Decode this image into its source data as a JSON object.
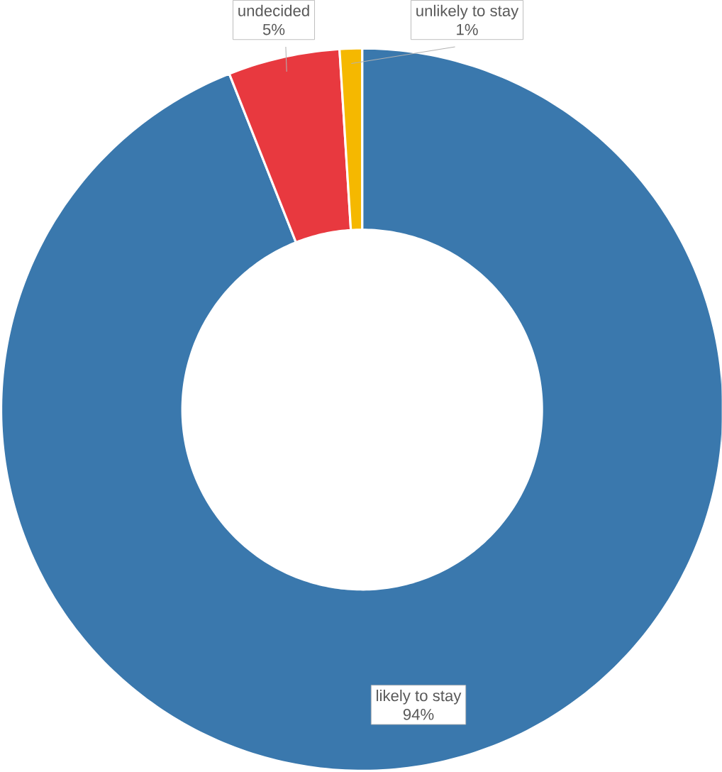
{
  "chart_data": {
    "type": "donut",
    "categories": [
      "likely to stay",
      "undecided",
      "unlikely to stay"
    ],
    "values": [
      94,
      5,
      1
    ],
    "colors": [
      "#3a78ad",
      "#e8393f",
      "#f5b800"
    ],
    "value_labels": [
      "94%",
      "5%",
      "1%"
    ]
  }
}
